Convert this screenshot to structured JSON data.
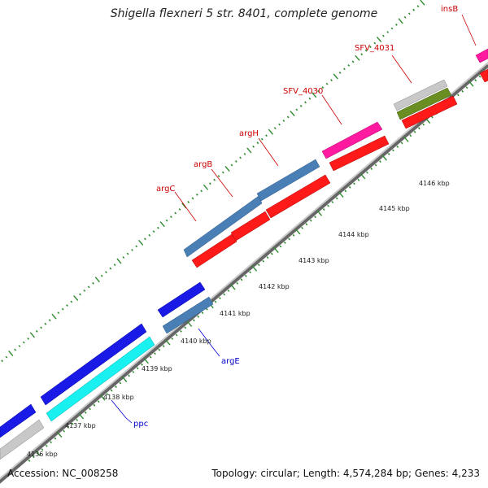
{
  "title": "Shigella flexneri 5 str. 8401, complete genome",
  "footer": {
    "accession": "Accession: NC_008258",
    "summary": "Topology: circular; Length: 4,574,284 bp; Genes: 4,233"
  },
  "colors": {
    "backbone": "#888888",
    "tick": "#2e8b2e",
    "label_forward": "#cc0000",
    "label_reverse": "#0000cc",
    "blue": "#1a1ae6",
    "steel": "#4a7fb5",
    "red": "#ff1a1a",
    "magenta": "#ff1aa0",
    "cyan": "#19f0f0",
    "olive": "#6b8e23",
    "gray": "#c8c8c8"
  },
  "scale_labels": [
    {
      "text": "4136 kbp",
      "kbp": 4136
    },
    {
      "text": "4137 kbp",
      "kbp": 4137
    },
    {
      "text": "4138 kbp",
      "kbp": 4138
    },
    {
      "text": "4139 kbp",
      "kbp": 4139
    },
    {
      "text": "4140 kbp",
      "kbp": 4140
    },
    {
      "text": "4141 kbp",
      "kbp": 4141
    },
    {
      "text": "4142 kbp",
      "kbp": 4142
    },
    {
      "text": "4143 kbp",
      "kbp": 4143
    },
    {
      "text": "4144 kbp",
      "kbp": 4144
    },
    {
      "text": "4145 kbp",
      "kbp": 4145
    },
    {
      "text": "4146 kbp",
      "kbp": 4146
    }
  ],
  "gene_labels": [
    {
      "text": "insB",
      "strand": "forward"
    },
    {
      "text": "SFV_4031",
      "strand": "forward"
    },
    {
      "text": "SFV_4030",
      "strand": "forward"
    },
    {
      "text": "argH",
      "strand": "forward"
    },
    {
      "text": "argB",
      "strand": "forward"
    },
    {
      "text": "argC",
      "strand": "forward"
    },
    {
      "text": "argE",
      "strand": "reverse"
    },
    {
      "text": "ppc",
      "strand": "reverse"
    }
  ]
}
